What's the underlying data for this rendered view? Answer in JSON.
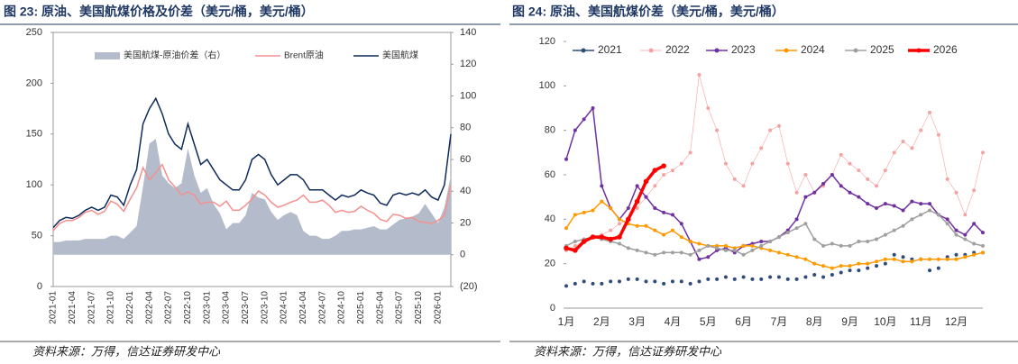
{
  "chart_data": [
    {
      "type": "line",
      "title": "图 23: 原油、美国航煤价格及价差（美元/桶，美元/桶）",
      "source": "资料来源：万得，信达证券研发中心",
      "x": [
        "2021-01",
        "2021-02",
        "2021-03",
        "2021-04",
        "2021-05",
        "2021-06",
        "2021-07",
        "2021-08",
        "2021-09",
        "2021-10",
        "2021-11",
        "2021-12",
        "2022-01",
        "2022-02",
        "2022-03",
        "2022-04",
        "2022-05",
        "2022-06",
        "2022-07",
        "2022-08",
        "2022-09",
        "2022-10",
        "2022-11",
        "2022-12",
        "2023-01",
        "2023-02",
        "2023-03",
        "2023-04",
        "2023-05",
        "2023-06",
        "2023-07",
        "2023-08",
        "2023-09",
        "2023-10",
        "2023-11",
        "2023-12",
        "2024-01",
        "2024-02",
        "2024-03",
        "2024-04",
        "2024-05",
        "2024-06",
        "2024-07",
        "2024-08",
        "2024-09",
        "2024-10",
        "2024-11",
        "2024-12",
        "2025-01",
        "2025-02",
        "2025-03",
        "2025-04",
        "2025-05",
        "2025-06",
        "2025-07",
        "2025-08",
        "2025-09",
        "2025-10",
        "2025-11",
        "2025-12",
        "2026-01",
        "2026-02",
        "2026-03"
      ],
      "xticks": [
        "2021-01",
        "2021-04",
        "2021-07",
        "2021-10",
        "2022-01",
        "2022-04",
        "2022-07",
        "2022-10",
        "2023-01",
        "2023-04",
        "2023-07",
        "2023-10",
        "2024-01",
        "2024-04",
        "2024-07",
        "2024-10",
        "2025-01",
        "2025-04",
        "2025-07",
        "2025-10",
        "2026-01"
      ],
      "ylim": [
        0,
        250
      ],
      "yticks": [
        0,
        50,
        100,
        150,
        200,
        250
      ],
      "y2lim": [
        -20,
        140
      ],
      "y2ticks": [
        {
          "value": -20,
          "label": "(20)"
        },
        0,
        20,
        40,
        60,
        80,
        100,
        120,
        140
      ],
      "series": [
        {
          "name": "美国航煤-原油价差（右）",
          "color": "#b4bccc",
          "style": "area",
          "axis": "y2",
          "values": [
            8,
            8,
            9,
            9,
            9,
            10,
            10,
            10,
            10,
            12,
            12,
            10,
            14,
            18,
            43,
            70,
            73,
            50,
            45,
            42,
            45,
            67,
            50,
            39,
            42,
            32,
            26,
            16,
            20,
            20,
            25,
            39,
            36,
            35,
            27,
            22,
            25,
            27,
            25,
            15,
            12,
            12,
            10,
            10,
            12,
            15,
            15,
            16,
            16,
            17,
            18,
            16,
            16,
            19,
            22,
            23,
            24,
            26,
            32,
            26,
            20,
            30,
            50
          ]
        },
        {
          "name": "Brent原油",
          "color": "#f4908e",
          "style": "line",
          "values": [
            55,
            62,
            65,
            65,
            68,
            73,
            75,
            71,
            74,
            84,
            81,
            74,
            86,
            97,
            117,
            105,
            112,
            120,
            105,
            98,
            90,
            93,
            90,
            81,
            83,
            83,
            79,
            84,
            75,
            75,
            80,
            86,
            94,
            90,
            83,
            78,
            80,
            83,
            85,
            90,
            83,
            83,
            85,
            80,
            73,
            75,
            73,
            74,
            79,
            75,
            72,
            66,
            64,
            71,
            70,
            67,
            68,
            64,
            63,
            62,
            65,
            70,
            100
          ]
        },
        {
          "name": "美国航煤",
          "color": "#0f2a5c",
          "style": "line",
          "values": [
            58,
            65,
            68,
            67,
            70,
            75,
            78,
            75,
            78,
            90,
            88,
            80,
            100,
            115,
            160,
            175,
            185,
            170,
            150,
            140,
            135,
            160,
            140,
            120,
            125,
            115,
            105,
            100,
            95,
            95,
            105,
            125,
            130,
            125,
            110,
            100,
            105,
            110,
            110,
            105,
            95,
            95,
            95,
            90,
            85,
            90,
            88,
            90,
            95,
            92,
            90,
            82,
            80,
            90,
            92,
            90,
            92,
            90,
            95,
            88,
            85,
            100,
            150
          ]
        }
      ]
    },
    {
      "type": "line",
      "title": "图 24: 原油、美国航煤价差（美元/桶，美元/桶）",
      "source": "资料来源：万得，信达证券研发中心",
      "categories": [
        "1月",
        null,
        null,
        null,
        "2月",
        null,
        null,
        null,
        "3月",
        null,
        null,
        null,
        "4月",
        null,
        null,
        null,
        "5月",
        null,
        null,
        null,
        "6月",
        null,
        null,
        null,
        "7月",
        null,
        null,
        null,
        "8月",
        null,
        null,
        null,
        "9月",
        null,
        null,
        null,
        "10月",
        null,
        null,
        null,
        "11月",
        null,
        null,
        null,
        "12月",
        null,
        null,
        null
      ],
      "ylim": [
        0,
        120
      ],
      "yticks": [
        0,
        20,
        40,
        60,
        80,
        100,
        120
      ],
      "series": [
        {
          "name": "2021",
          "color": "#2f4b7c",
          "dash": "dots",
          "values": [
            10,
            11,
            12,
            11,
            11,
            12,
            12,
            13,
            13,
            12,
            12,
            11,
            12,
            12,
            11,
            12,
            13,
            13,
            14,
            13,
            14,
            13,
            13,
            14,
            14,
            13,
            13,
            14,
            15,
            14,
            15,
            16,
            17,
            17,
            18,
            19,
            20,
            24,
            23,
            22,
            22,
            17,
            18,
            23,
            24,
            24,
            25,
            25
          ]
        },
        {
          "name": "2022",
          "color": "#f4a3a3",
          "dash": "thin",
          "values": [
            26,
            28,
            30,
            32,
            33,
            35,
            38,
            40,
            45,
            50,
            55,
            60,
            62,
            65,
            70,
            105,
            90,
            80,
            65,
            58,
            55,
            65,
            72,
            80,
            82,
            65,
            52,
            60,
            52,
            55,
            60,
            69,
            65,
            62,
            58,
            55,
            62,
            70,
            75,
            72,
            80,
            88,
            78,
            58,
            52,
            42,
            53,
            70
          ]
        },
        {
          "name": "2023",
          "color": "#7030a0",
          "dash": "solid",
          "values": [
            67,
            80,
            85,
            90,
            55,
            45,
            40,
            45,
            55,
            50,
            45,
            43,
            42,
            38,
            30,
            22,
            23,
            26,
            27,
            25,
            28,
            29,
            30,
            30,
            32,
            35,
            40,
            50,
            52,
            56,
            60,
            55,
            52,
            50,
            47,
            45,
            47,
            46,
            44,
            48,
            47,
            47,
            42,
            40,
            35,
            33,
            38,
            34
          ]
        },
        {
          "name": "2024",
          "color": "#ff9900",
          "dash": "solid",
          "values": [
            36,
            42,
            43,
            44,
            48,
            45,
            40,
            38,
            37,
            37,
            35,
            33,
            35,
            32,
            30,
            29,
            28,
            28,
            28,
            27,
            28,
            28,
            27,
            26,
            25,
            24,
            23,
            22,
            20,
            19,
            18,
            19,
            19,
            20,
            20,
            21,
            22,
            22,
            21,
            21,
            22,
            22,
            22,
            22,
            22,
            23,
            24,
            25
          ]
        },
        {
          "name": "2025",
          "color": "#a0a0a0",
          "dash": "solid",
          "values": [
            28,
            30,
            31,
            32,
            31,
            30,
            29,
            27,
            26,
            25,
            24,
            25,
            25,
            25,
            24,
            26,
            28,
            27,
            26,
            26,
            24,
            26,
            28,
            30,
            32,
            34,
            36,
            38,
            31,
            28,
            29,
            28,
            28,
            30,
            30,
            31,
            33,
            35,
            37,
            40,
            42,
            44,
            42,
            38,
            33,
            31,
            29,
            28
          ]
        },
        {
          "name": "2026",
          "color": "#ff0000",
          "dash": "bold",
          "values": [
            27,
            26,
            30,
            32,
            32,
            31,
            32,
            40,
            48,
            57,
            62,
            64,
            null,
            null,
            null,
            null,
            null,
            null,
            null,
            null,
            null,
            null,
            null,
            null,
            null,
            null,
            null,
            null,
            null,
            null,
            null,
            null,
            null,
            null,
            null,
            null,
            null,
            null,
            null,
            null,
            null,
            null,
            null,
            null,
            null,
            null,
            null,
            null
          ]
        }
      ]
    }
  ]
}
